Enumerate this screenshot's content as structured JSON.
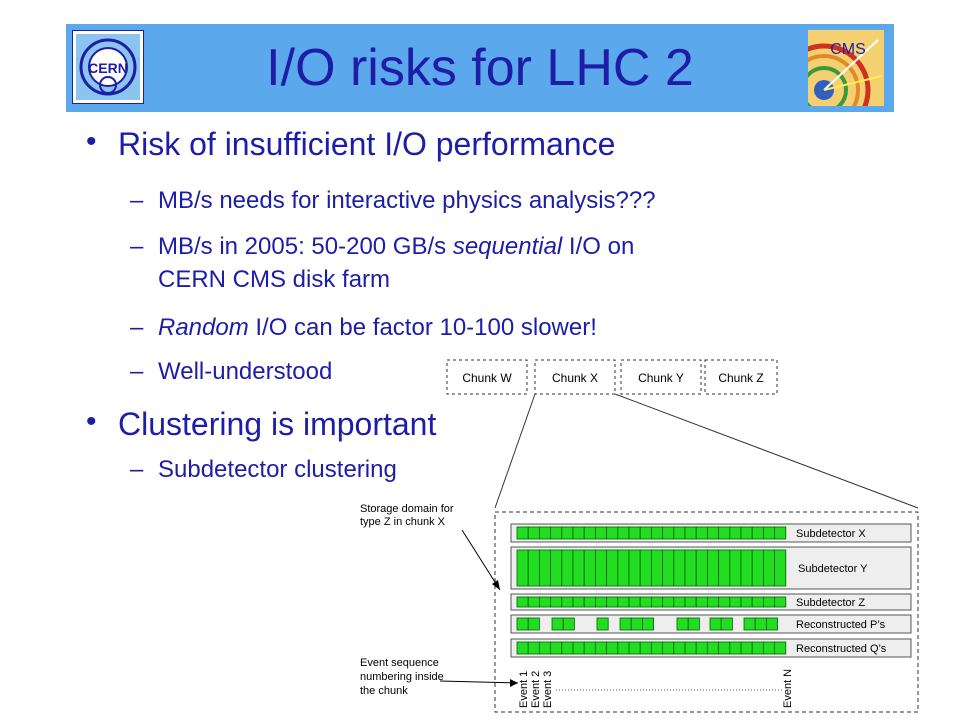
{
  "slide": {
    "title": "I/O risks for LHC 2",
    "logos": {
      "left": "CERN",
      "right": "CMS"
    },
    "bullets": [
      {
        "text": "Risk of insufficient I/O performance",
        "subs": [
          {
            "line1": "MB/s needs for interactive physics analysis???"
          },
          {
            "pre": "MB/s in 2005: 50-200 GB/s ",
            "em": "sequential",
            "post": " I/O on",
            "line2": "CERN CMS disk farm"
          },
          {
            "em": "Random",
            "post": " I/O can be factor 10-100 slower!"
          },
          {
            "line1": "Well-understood"
          }
        ]
      },
      {
        "text": "Clustering is important",
        "subs": [
          {
            "line1": "Subdetector clustering"
          }
        ]
      }
    ]
  },
  "diagram": {
    "chunks": [
      "Chunk W",
      "Chunk X",
      "Chunk Y",
      "Chunk Z"
    ],
    "storage_label": [
      "Storage domain for",
      "type Z in chunk X"
    ],
    "rows": [
      "Subdetector X",
      "Subdetector Y",
      "Subdetector Z",
      "Reconstructed P’s",
      "Reconstructed Q’s"
    ],
    "event_label": [
      "Event sequence",
      "numbering inside",
      "the chunk"
    ],
    "events": [
      "Event 1",
      "Event 2",
      "Event 3",
      "Event N"
    ],
    "colors": {
      "cell_fill": "#22dd22",
      "cell_stroke": "#006600",
      "row_fill": "#eeeeee",
      "text": "#1d1da8",
      "banner": "#5ba9ec"
    }
  }
}
